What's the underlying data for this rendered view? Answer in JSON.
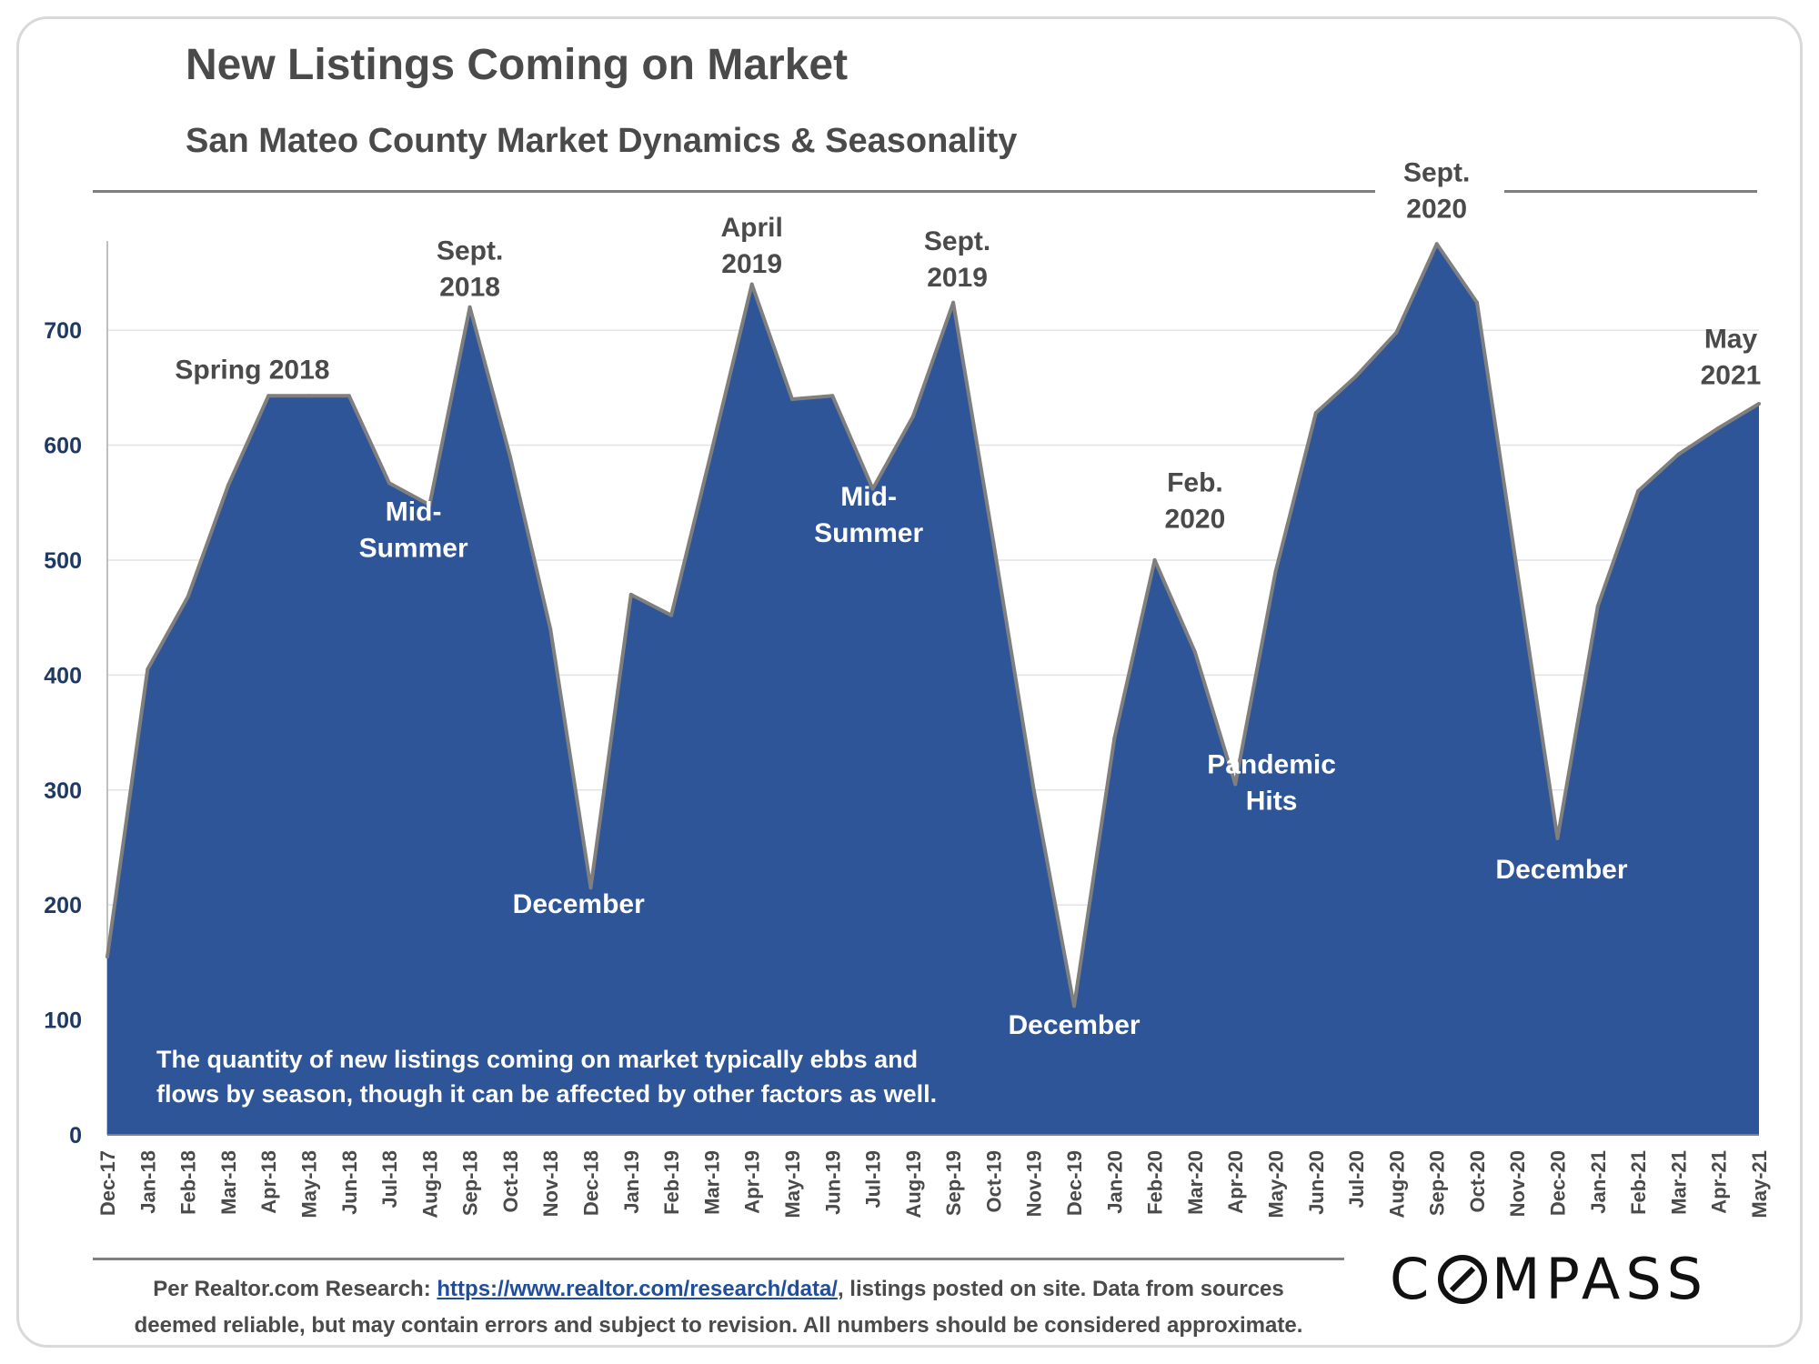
{
  "header": {
    "title": "New Listings Coming on Market",
    "subtitle": "San Mateo County Market Dynamics & Seasonality"
  },
  "footer": {
    "prefix": "Per Realtor.com Research:",
    "link": "https://www.realtor.com/research/data/",
    "suffix": ", listings posted on site. Data from sources",
    "line2": "deemed reliable, but may contain errors and subject to revision. All numbers should be considered approximate."
  },
  "logo": {
    "text": "COMPASS"
  },
  "colors": {
    "fill": "#2e5597",
    "stroke": "#7f7f7f",
    "text": "#4a4a4a",
    "axis_text": "#1f3864",
    "white_label": "#ffffff"
  },
  "chart_data": {
    "type": "area",
    "categories": [
      "Dec-17",
      "Jan-18",
      "Feb-18",
      "Mar-18",
      "Apr-18",
      "May-18",
      "Jun-18",
      "Jul-18",
      "Aug-18",
      "Sep-18",
      "Oct-18",
      "Nov-18",
      "Dec-18",
      "Jan-19",
      "Feb-19",
      "Mar-19",
      "Apr-19",
      "May-19",
      "Jun-19",
      "Jul-19",
      "Aug-19",
      "Sep-19",
      "Oct-19",
      "Nov-19",
      "Dec-19",
      "Jan-20",
      "Feb-20",
      "Mar-20",
      "Apr-20",
      "May-20",
      "Jun-20",
      "Jul-20",
      "Aug-20",
      "Sep-20",
      "Oct-20",
      "Nov-20",
      "Dec-20",
      "Jan-21",
      "Feb-21",
      "Mar-21",
      "Apr-21",
      "May-21"
    ],
    "values": [
      155,
      405,
      468,
      565,
      643,
      643,
      643,
      567,
      548,
      720,
      590,
      440,
      215,
      470,
      452,
      595,
      740,
      640,
      643,
      562,
      625,
      724,
      515,
      300,
      112,
      345,
      500,
      420,
      305,
      490,
      628,
      660,
      698,
      775,
      724,
      490,
      258,
      460,
      560,
      592,
      615,
      636
    ],
    "ylim": [
      0,
      780
    ],
    "yticks": [
      0,
      100,
      200,
      300,
      400,
      500,
      600,
      700
    ],
    "grid": true,
    "annotations": [
      {
        "idx": 3.6,
        "val": 650,
        "lines": [
          "Spring 2018"
        ],
        "color": "dark"
      },
      {
        "idx": 9,
        "val": 722,
        "lines": [
          "Sept.",
          "2018"
        ],
        "color": "dark"
      },
      {
        "idx": 7.6,
        "val": 495,
        "lines": [
          "Mid-",
          "Summer"
        ],
        "color": "white"
      },
      {
        "idx": 11.7,
        "val": 185,
        "lines": [
          "December"
        ],
        "color": "white"
      },
      {
        "idx": 16,
        "val": 742,
        "lines": [
          "April",
          "2019"
        ],
        "color": "dark"
      },
      {
        "idx": 21.1,
        "val": 730,
        "lines": [
          "Sept.",
          "2019"
        ],
        "color": "dark"
      },
      {
        "idx": 18.9,
        "val": 508,
        "lines": [
          "Mid-",
          "Summer"
        ],
        "color": "white"
      },
      {
        "idx": 24,
        "val": 80,
        "lines": [
          "December"
        ],
        "color": "white"
      },
      {
        "idx": 27,
        "val": 520,
        "lines": [
          "Feb.",
          "2020"
        ],
        "color": "dark"
      },
      {
        "idx": 28.9,
        "val": 275,
        "lines": [
          "Pandemic",
          "Hits"
        ],
        "color": "white"
      },
      {
        "idx": 33,
        "val": 790,
        "lines": [
          "Sept.",
          "2020"
        ],
        "color": "dark"
      },
      {
        "idx": 36.1,
        "val": 215,
        "lines": [
          "December"
        ],
        "color": "white"
      },
      {
        "idx": 40.3,
        "val": 645,
        "lines": [
          "May",
          "2021"
        ],
        "color": "dark"
      }
    ],
    "note": [
      "The quantity of new listings coming on market typically ebbs and",
      "flows by season, though it can be affected by other factors as well."
    ]
  }
}
